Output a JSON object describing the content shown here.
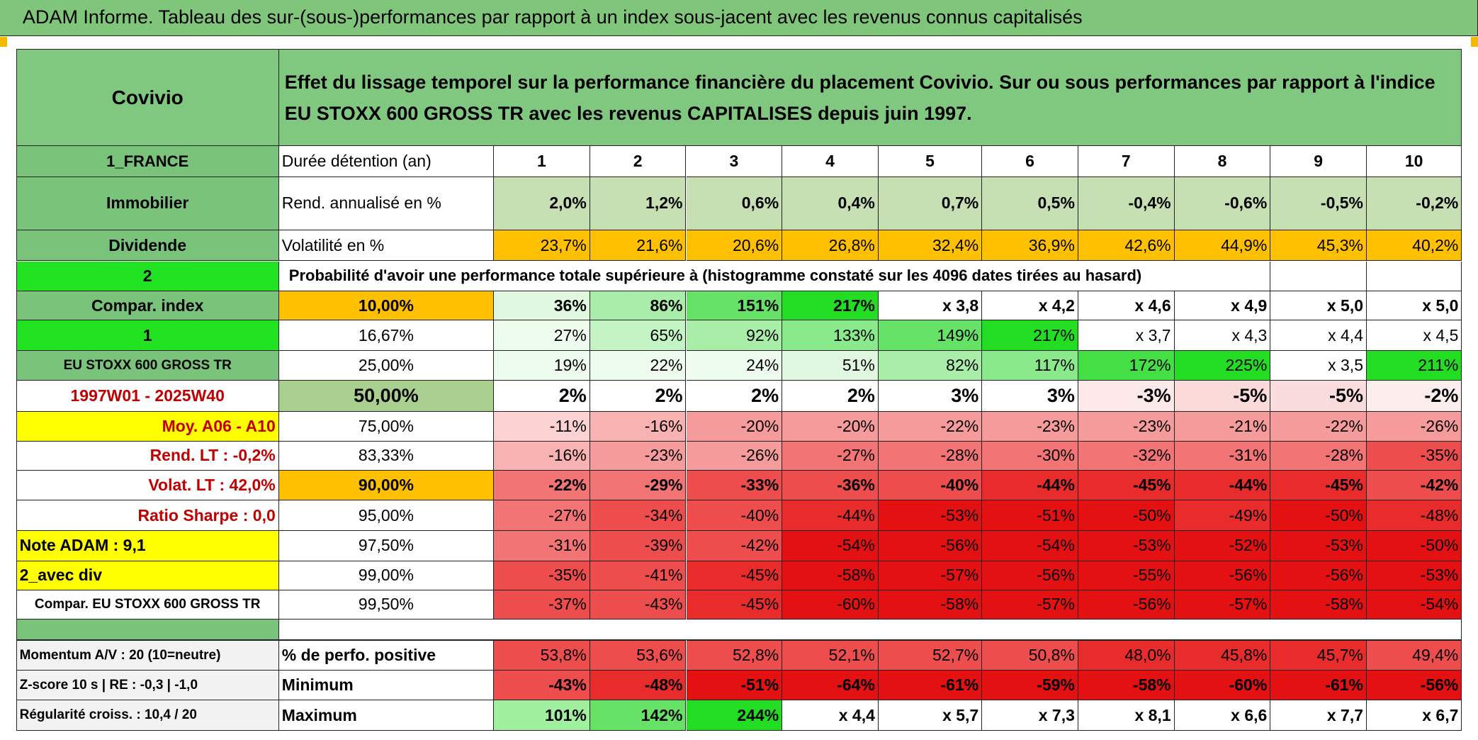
{
  "title": "ADAM Informe. Tableau des sur-(sous-)performances par rapport à un index sous-jacent avec les revenus connus capitalisés",
  "header": {
    "name": "Covivio",
    "description": "Effet du lissage temporel sur la performance financière du placement Covivio. Sur ou sous performances par rapport à l'indice EU STOXX 600 GROSS TR avec les revenus CAPITALISES depuis juin 1997."
  },
  "rows": [
    {
      "label": "1_FRANCE",
      "cells": [
        "Durée détention (an)",
        "1",
        "2",
        "3",
        "4",
        "5",
        "6",
        "7",
        "8",
        "9",
        "10"
      ]
    },
    {
      "label": "Immobilier",
      "cells": [
        "Rend. annualisé en %",
        "2,0%",
        "1,2%",
        "0,6%",
        "0,4%",
        "0,7%",
        "0,5%",
        "-0,4%",
        "-0,6%",
        "-0,5%",
        "-0,2%"
      ]
    },
    {
      "label": "Dividende",
      "cells": [
        "Volatilité en %",
        "23,7%",
        "21,6%",
        "20,6%",
        "26,8%",
        "32,4%",
        "36,9%",
        "42,6%",
        "44,9%",
        "45,3%",
        "40,2%"
      ]
    },
    {
      "label": "2",
      "note": "Probabilité d'avoir une performance totale supérieure à (histogramme constaté sur les 4096 dates tirées au hasard)"
    },
    {
      "label": "Compar. index",
      "cells": [
        "10,00%",
        "36%",
        "86%",
        "151%",
        "217%",
        "x 3,8",
        "x 4,2",
        "x 4,6",
        "x 4,9",
        "x 5,0",
        "x 5,0"
      ]
    },
    {
      "label": "1",
      "cells": [
        "16,67%",
        "27%",
        "65%",
        "92%",
        "133%",
        "149%",
        "217%",
        "x 3,7",
        "x 4,3",
        "x 4,4",
        "x 4,5"
      ]
    },
    {
      "label": "EU STOXX 600 GROSS TR",
      "cells": [
        "25,00%",
        "19%",
        "22%",
        "24%",
        "51%",
        "82%",
        "117%",
        "172%",
        "225%",
        "x 3,5",
        "211%"
      ]
    },
    {
      "label": "1997W01 - 2025W40",
      "cells": [
        "50,00%",
        "2%",
        "2%",
        "2%",
        "2%",
        "3%",
        "3%",
        "-3%",
        "-5%",
        "-5%",
        "-2%"
      ]
    },
    {
      "label": "Moy. A06 - A10",
      "cells": [
        "75,00%",
        "-11%",
        "-16%",
        "-20%",
        "-20%",
        "-22%",
        "-23%",
        "-23%",
        "-21%",
        "-22%",
        "-26%"
      ]
    },
    {
      "label": "Rend. LT :    -0,2%",
      "cells": [
        "83,33%",
        "-16%",
        "-23%",
        "-26%",
        "-27%",
        "-28%",
        "-30%",
        "-32%",
        "-31%",
        "-28%",
        "-35%"
      ]
    },
    {
      "label": "Volat. LT :   42,0%",
      "cells": [
        "90,00%",
        "-22%",
        "-29%",
        "-33%",
        "-36%",
        "-40%",
        "-44%",
        "-45%",
        "-44%",
        "-45%",
        "-42%"
      ]
    },
    {
      "label": "Ratio Sharpe :    0,0",
      "cells": [
        "95,00%",
        "-27%",
        "-34%",
        "-40%",
        "-44%",
        "-53%",
        "-51%",
        "-50%",
        "-49%",
        "-50%",
        "-48%"
      ]
    },
    {
      "label": "Note ADAM : 9,1",
      "cells": [
        "97,50%",
        "-31%",
        "-39%",
        "-42%",
        "-54%",
        "-56%",
        "-54%",
        "-53%",
        "-52%",
        "-53%",
        "-50%"
      ]
    },
    {
      "label": "2_avec div",
      "cells": [
        "99,00%",
        "-35%",
        "-41%",
        "-45%",
        "-58%",
        "-57%",
        "-56%",
        "-55%",
        "-56%",
        "-56%",
        "-53%"
      ]
    },
    {
      "label": "Compar. EU STOXX 600 GROSS TR",
      "cells": [
        "99,50%",
        "-37%",
        "-43%",
        "-45%",
        "-60%",
        "-58%",
        "-57%",
        "-56%",
        "-57%",
        "-58%",
        "-54%"
      ]
    }
  ],
  "summary_rows": [
    {
      "label": "Momentum A/V : 20 (10=neutre)",
      "cells": [
        "% de perfo. positive",
        "53,8%",
        "53,6%",
        "52,8%",
        "52,1%",
        "52,7%",
        "50,8%",
        "48,0%",
        "45,8%",
        "45,7%",
        "49,4%"
      ]
    },
    {
      "label": "Z-score 10 s | RE : -0,3 | -1,0",
      "cells": [
        "Minimum",
        "-43%",
        "-48%",
        "-51%",
        "-64%",
        "-61%",
        "-59%",
        "-58%",
        "-60%",
        "-61%",
        "-56%"
      ]
    },
    {
      "label": "Régularité croiss. : 10,4 / 20",
      "cells": [
        "Maximum",
        "101%",
        "142%",
        "244%",
        "x 4,4",
        "x 5,7",
        "x 7,3",
        "x 8,1",
        "x 6,6",
        "x 7,7",
        "x 6,7"
      ]
    }
  ]
}
